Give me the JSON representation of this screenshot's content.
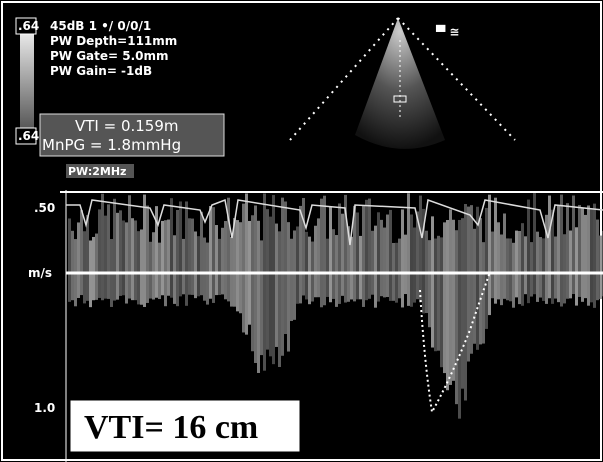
{
  "header": {
    "gain_box_top": ".64",
    "settings": [
      "45dB 1 •/ 0/0/1",
      "PW Depth=111mm",
      "PW Gate= 5.0mm",
      "PW Gain= -1dB"
    ],
    "gain_box_bottom": ".64",
    "measurements": [
      "VTI = 0.159m",
      "MnPG = 1.8mmHg"
    ],
    "mode": "PW:2MHz"
  },
  "scale": {
    "top": ".50",
    "unit": "m/s",
    "bottom": "1.0"
  },
  "annotation": "VTI= 16 cm"
}
